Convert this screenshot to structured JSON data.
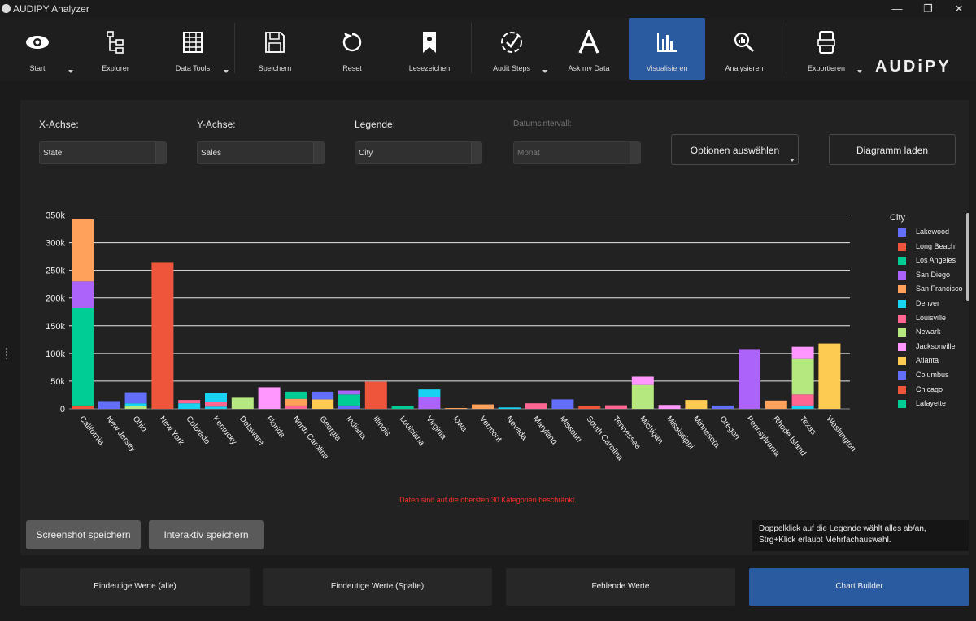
{
  "window": {
    "title": "AUDIPY Analyzer",
    "controls": {
      "minimize": "—",
      "maximize": "❐",
      "close": "✕"
    }
  },
  "toolbar": {
    "items": [
      {
        "label": "Start",
        "icon": "eye-icon",
        "dropdown": true
      },
      {
        "label": "Explorer",
        "icon": "tree-icon",
        "dropdown": false
      },
      {
        "label": "Data Tools",
        "icon": "table-icon",
        "dropdown": true
      },
      {
        "label": "Speichern",
        "icon": "floppy-icon",
        "dropdown": false
      },
      {
        "label": "Reset",
        "icon": "reset-icon",
        "dropdown": false
      },
      {
        "label": "Lesezeichen",
        "icon": "bookmark-icon",
        "dropdown": false
      },
      {
        "label": "Audit Steps",
        "icon": "check-circle-icon",
        "dropdown": true
      },
      {
        "label": "Ask my Data",
        "icon": "ai-letter-icon",
        "dropdown": false
      },
      {
        "label": "Visualisieren",
        "icon": "bar-chart-icon",
        "dropdown": false,
        "active": true
      },
      {
        "label": "Analysieren",
        "icon": "magnifier-icon",
        "dropdown": false
      },
      {
        "label": "Exportieren",
        "icon": "export-icon",
        "dropdown": true
      }
    ],
    "brand": "AUDiPY",
    "accent": "#2a5aa0"
  },
  "controls": {
    "x_label": "X-Achse:",
    "x_value": "State",
    "y_label": "Y-Achse:",
    "y_value": "Sales",
    "legend_label": "Legende:",
    "legend_value": "City",
    "date_label": "Datumsintervall:",
    "date_value": "Monat",
    "options_button": "Optionen auswählen",
    "load_button": "Diagramm laden"
  },
  "chart_data": {
    "type": "bar",
    "stacked": true,
    "categories": [
      "California",
      "New Jersey",
      "Ohio",
      "New York",
      "Colorado",
      "Kentucky",
      "Delaware",
      "Florida",
      "North Carolina",
      "Georgia",
      "Indiana",
      "Illinois",
      "Louisiana",
      "Virginia",
      "Iowa",
      "Vermont",
      "Nevada",
      "Maryland",
      "Missouri",
      "South Carolina",
      "Tennessee",
      "Michigan",
      "Mississippi",
      "Minnesota",
      "Oregon",
      "Pennsylvania",
      "Rhode Island",
      "Texas",
      "Washington"
    ],
    "yticks": [
      {
        "v": 0,
        "label": "0"
      },
      {
        "v": 50000,
        "label": "50k"
      },
      {
        "v": 100000,
        "label": "100k"
      },
      {
        "v": 150000,
        "label": "150k"
      },
      {
        "v": 200000,
        "label": "200k"
      },
      {
        "v": 250000,
        "label": "250k"
      },
      {
        "v": 300000,
        "label": "300k"
      },
      {
        "v": 350000,
        "label": "350k"
      }
    ],
    "ylim": [
      0,
      350000
    ],
    "grid": true,
    "legend_title": "City",
    "legend_position": "right",
    "series": [
      {
        "name": "Lakewood",
        "color": "#636efa"
      },
      {
        "name": "Long Beach",
        "color": "#ef553b"
      },
      {
        "name": "Los Angeles",
        "color": "#00cc96"
      },
      {
        "name": "San Diego",
        "color": "#ab63fa"
      },
      {
        "name": "San Francisco",
        "color": "#ffa15a"
      },
      {
        "name": "Denver",
        "color": "#19d3f3"
      },
      {
        "name": "Louisville",
        "color": "#ff6692"
      },
      {
        "name": "Newark",
        "color": "#b6e880"
      },
      {
        "name": "Jacksonville",
        "color": "#ff97ff"
      },
      {
        "name": "Atlanta",
        "color": "#fecb52"
      },
      {
        "name": "Columbus",
        "color": "#636efa"
      },
      {
        "name": "Chicago",
        "color": "#ef553b"
      },
      {
        "name": "Lafayette",
        "color": "#00cc96"
      }
    ],
    "stacks": [
      [
        {
          "c": "#ef553b",
          "v": 6000
        },
        {
          "c": "#00cc96",
          "v": 176000
        },
        {
          "c": "#ab63fa",
          "v": 48000
        },
        {
          "c": "#ffa15a",
          "v": 112000
        }
      ],
      [
        {
          "c": "#636efa",
          "v": 14000
        }
      ],
      [
        {
          "c": "#b6e880",
          "v": 5000
        },
        {
          "c": "#19d3f3",
          "v": 5000
        },
        {
          "c": "#636efa",
          "v": 20000
        }
      ],
      [
        {
          "c": "#ef553b",
          "v": 265000
        }
      ],
      [
        {
          "c": "#19d3f3",
          "v": 10000
        },
        {
          "c": "#ff6692",
          "v": 6000
        }
      ],
      [
        {
          "c": "#19d3f3",
          "v": 4000
        },
        {
          "c": "#ff6692",
          "v": 8000
        },
        {
          "c": "#19d3f3",
          "v": 16000
        }
      ],
      [
        {
          "c": "#b6e880",
          "v": 20000
        }
      ],
      [
        {
          "c": "#ff97ff",
          "v": 39000
        }
      ],
      [
        {
          "c": "#ff6692",
          "v": 6000
        },
        {
          "c": "#ffa15a",
          "v": 12000
        },
        {
          "c": "#00cc96",
          "v": 13000
        }
      ],
      [
        {
          "c": "#fecb52",
          "v": 17000
        },
        {
          "c": "#636efa",
          "v": 14000
        }
      ],
      [
        {
          "c": "#636efa",
          "v": 6000
        },
        {
          "c": "#00cc96",
          "v": 20000
        },
        {
          "c": "#ab63fa",
          "v": 7000
        }
      ],
      [
        {
          "c": "#ef553b",
          "v": 49000
        }
      ],
      [
        {
          "c": "#00cc96",
          "v": 5000
        }
      ],
      [
        {
          "c": "#ab63fa",
          "v": 21000
        },
        {
          "c": "#19d3f3",
          "v": 14000
        }
      ],
      [
        {
          "c": "#ffa15a",
          "v": 1500
        }
      ],
      [
        {
          "c": "#ffa15a",
          "v": 8000
        }
      ],
      [
        {
          "c": "#19d3f3",
          "v": 2500
        }
      ],
      [
        {
          "c": "#ff6692",
          "v": 10000
        }
      ],
      [
        {
          "c": "#636efa",
          "v": 17000
        }
      ],
      [
        {
          "c": "#ef553b",
          "v": 5000
        }
      ],
      [
        {
          "c": "#ff6692",
          "v": 6500
        }
      ],
      [
        {
          "c": "#b6e880",
          "v": 43000
        },
        {
          "c": "#ff97ff",
          "v": 15000
        }
      ],
      [
        {
          "c": "#ff97ff",
          "v": 7000
        }
      ],
      [
        {
          "c": "#fecb52",
          "v": 16000
        }
      ],
      [
        {
          "c": "#636efa",
          "v": 6000
        }
      ],
      [
        {
          "c": "#ab63fa",
          "v": 108000
        }
      ],
      [
        {
          "c": "#ffa15a",
          "v": 15000
        }
      ],
      [
        {
          "c": "#19d3f3",
          "v": 6000
        },
        {
          "c": "#ff6692",
          "v": 20000
        },
        {
          "c": "#b6e880",
          "v": 64000
        },
        {
          "c": "#ff97ff",
          "v": 22000
        }
      ],
      [
        {
          "c": "#fecb52",
          "v": 118000
        }
      ]
    ]
  },
  "warning": "Daten sind auf die obersten 30 Kategorien beschränkt.",
  "buttons": {
    "screenshot": "Screenshot speichern",
    "interactive": "Interaktiv speichern"
  },
  "hint": "Doppelklick auf die Legende wählt alles ab/an, Strg+Klick erlaubt Mehrfachauswahl.",
  "bottom_tabs": [
    {
      "label": "Eindeutige Werte (alle)"
    },
    {
      "label": "Eindeutige Werte (Spalte)"
    },
    {
      "label": "Fehlende Werte"
    },
    {
      "label": "Chart Builder",
      "active": true
    }
  ]
}
